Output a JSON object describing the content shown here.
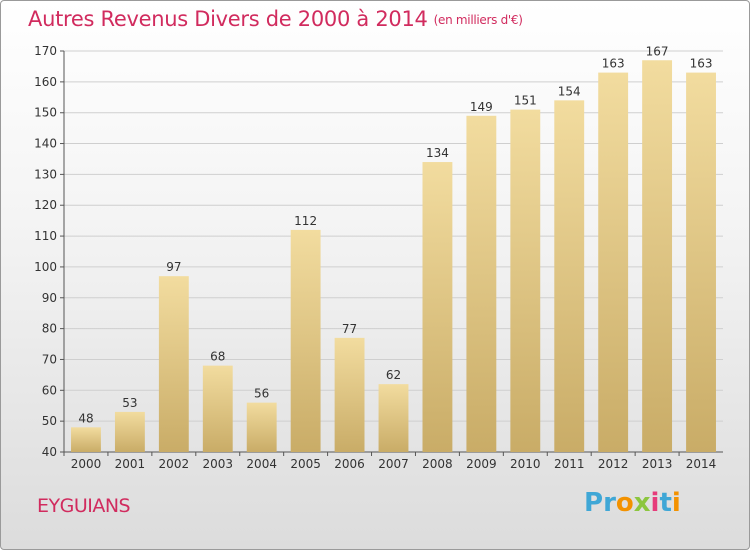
{
  "title": "Autres Revenus Divers de 2000 à 2014",
  "title_unit": "(en milliers d'€)",
  "commune": "EYGUIANS",
  "logo": {
    "letters": [
      "P",
      "r",
      "o",
      "x",
      "i",
      "t",
      "i"
    ],
    "colors": [
      "#3fa7d6",
      "#3fa7d6",
      "#f39200",
      "#8cc63f",
      "#e63b7a",
      "#3fa7d6",
      "#f39200"
    ]
  },
  "colors": {
    "title": "#d12b5e",
    "bar_light": "#f2dc9f",
    "bar_dark": "#c9ac67",
    "grid": "#cfcfcf"
  },
  "chart_data": {
    "type": "bar",
    "categories": [
      "2000",
      "2001",
      "2002",
      "2003",
      "2004",
      "2005",
      "2006",
      "2007",
      "2008",
      "2009",
      "2010",
      "2011",
      "2012",
      "2013",
      "2014"
    ],
    "values": [
      48,
      53,
      97,
      68,
      56,
      112,
      77,
      62,
      134,
      149,
      151,
      154,
      163,
      167,
      163
    ],
    "ylim": [
      40,
      170
    ],
    "yticks": [
      40,
      50,
      60,
      70,
      80,
      90,
      100,
      110,
      120,
      130,
      140,
      150,
      160,
      170
    ],
    "grid": true,
    "data_labels": true
  }
}
